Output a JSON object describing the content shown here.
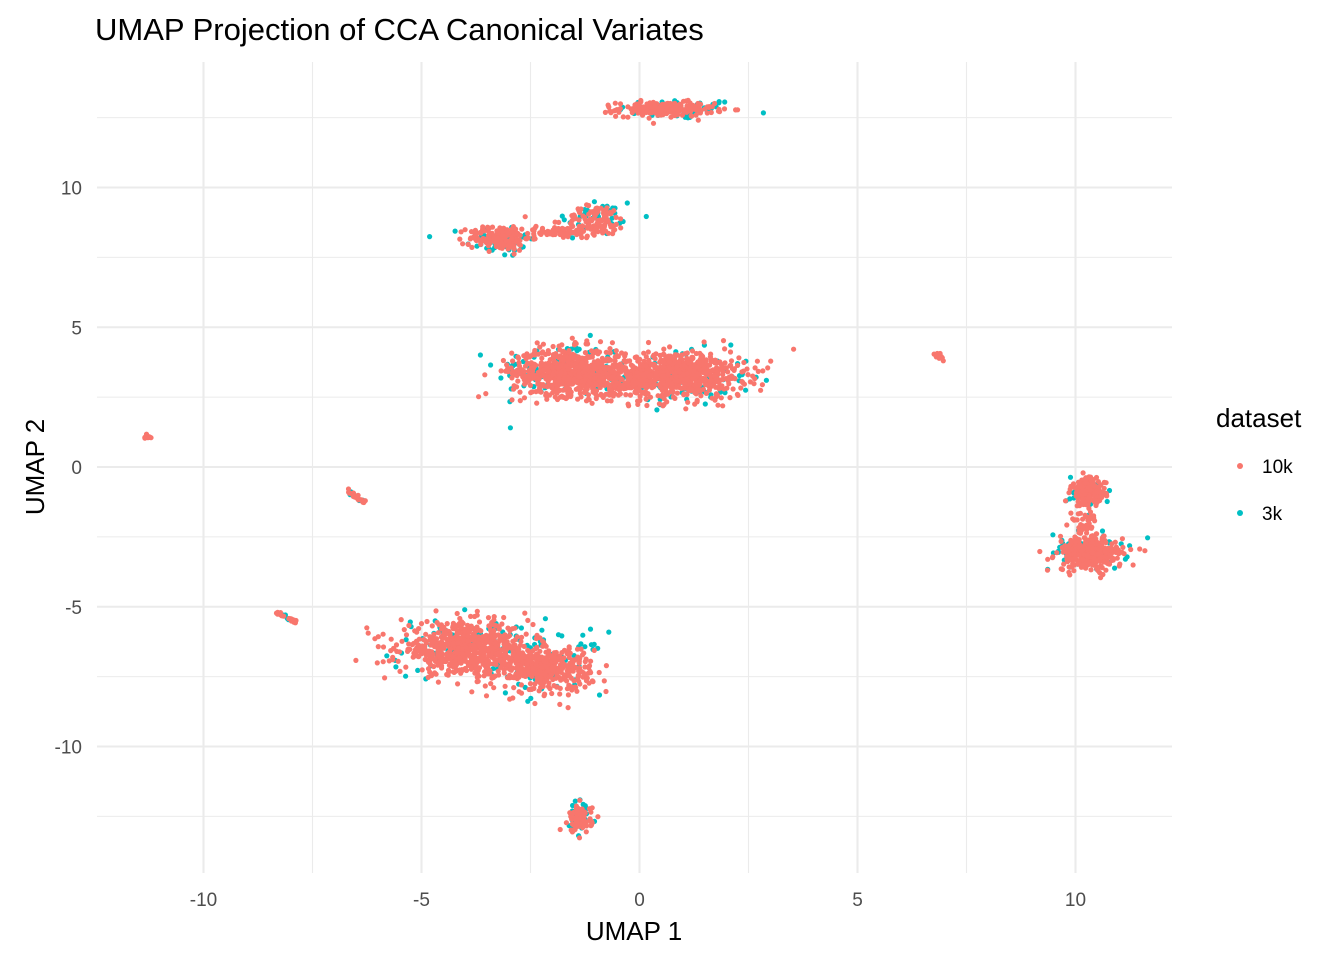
{
  "chart_data": {
    "type": "scatter",
    "title": "UMAP Projection of CCA Canonical Variates",
    "xlabel": "UMAP 1",
    "ylabel": "UMAP 2",
    "xlim": [
      -12.2,
      12.2
    ],
    "ylim": [
      -14.5,
      14.5
    ],
    "x_ticks": [
      -10,
      -5,
      0,
      5,
      10
    ],
    "y_ticks": [
      -10,
      -5,
      0,
      5,
      10
    ],
    "x_tick_labels": [
      "-10",
      "-5",
      "0",
      "5",
      "10"
    ],
    "y_tick_labels": [
      "-10",
      "-5",
      "0",
      "5",
      "10"
    ],
    "grid": true,
    "legend": {
      "title": "dataset",
      "position": "right",
      "entries": [
        {
          "label": "10k",
          "color": "#F8766D"
        },
        {
          "label": "3k",
          "color": "#00BFC4"
        }
      ]
    },
    "series": [
      {
        "name": "3k",
        "color": "#00BFC4",
        "clusters": [
          {
            "cx": 0.9,
            "cy": 12.8,
            "sx": 0.7,
            "sy": 0.18,
            "n": 60
          },
          {
            "cx": -3.2,
            "cy": 8.1,
            "sx": 0.4,
            "sy": 0.3,
            "n": 40
          },
          {
            "cx": -1.0,
            "cy": 8.9,
            "sx": 0.5,
            "sy": 0.4,
            "n": 40
          },
          {
            "cx": -1.8,
            "cy": 3.5,
            "sx": 0.75,
            "sy": 0.5,
            "n": 90
          },
          {
            "cx": 1.0,
            "cy": 3.2,
            "sx": 0.8,
            "sy": 0.5,
            "n": 90
          },
          {
            "cx": -3.9,
            "cy": -6.5,
            "sx": 0.9,
            "sy": 0.55,
            "n": 90
          },
          {
            "cx": -2.0,
            "cy": -7.0,
            "sx": 0.6,
            "sy": 0.55,
            "n": 60
          },
          {
            "cx": -1.35,
            "cy": -12.6,
            "sx": 0.18,
            "sy": 0.35,
            "n": 30
          },
          {
            "cx": 10.3,
            "cy": -0.9,
            "sx": 0.25,
            "sy": 0.3,
            "n": 30
          },
          {
            "cx": 10.3,
            "cy": -3.0,
            "sx": 0.45,
            "sy": 0.35,
            "n": 50
          }
        ],
        "streaks": [
          {
            "x1": -8.3,
            "y1": -5.2,
            "x2": -7.9,
            "y2": -5.55,
            "n": 6
          },
          {
            "x1": -6.7,
            "y1": -0.8,
            "x2": -6.35,
            "y2": -1.25,
            "n": 6
          }
        ]
      },
      {
        "name": "10k",
        "color": "#F8766D",
        "clusters": [
          {
            "cx": 0.6,
            "cy": 12.8,
            "sx": 0.55,
            "sy": 0.13,
            "n": 220
          },
          {
            "cx": -3.2,
            "cy": 8.2,
            "sx": 0.35,
            "sy": 0.22,
            "n": 160
          },
          {
            "cx": -1.9,
            "cy": 8.4,
            "sx": 0.4,
            "sy": 0.1,
            "n": 60
          },
          {
            "cx": -1.0,
            "cy": 8.8,
            "sx": 0.35,
            "sy": 0.28,
            "n": 120
          },
          {
            "cx": -1.6,
            "cy": 3.4,
            "sx": 0.65,
            "sy": 0.42,
            "n": 650
          },
          {
            "cx": 1.0,
            "cy": 3.3,
            "sx": 0.7,
            "sy": 0.42,
            "n": 650
          },
          {
            "cx": -0.3,
            "cy": 3.1,
            "sx": 0.5,
            "sy": 0.35,
            "n": 150
          },
          {
            "cx": -4.0,
            "cy": -6.5,
            "sx": 0.75,
            "sy": 0.45,
            "n": 650
          },
          {
            "cx": -2.2,
            "cy": -7.2,
            "sx": 0.55,
            "sy": 0.4,
            "n": 400
          },
          {
            "cx": -1.35,
            "cy": -12.6,
            "sx": 0.13,
            "sy": 0.25,
            "n": 80
          },
          {
            "cx": 10.3,
            "cy": -0.9,
            "sx": 0.2,
            "sy": 0.25,
            "n": 150
          },
          {
            "cx": 10.35,
            "cy": -3.1,
            "sx": 0.38,
            "sy": 0.3,
            "n": 300
          },
          {
            "cx": 10.2,
            "cy": -2.0,
            "sx": 0.15,
            "sy": 0.25,
            "n": 40
          },
          {
            "cx": 6.85,
            "cy": 3.95,
            "sx": 0.05,
            "sy": 0.06,
            "n": 15
          },
          {
            "cx": -11.3,
            "cy": 1.08,
            "sx": 0.05,
            "sy": 0.03,
            "n": 12
          }
        ],
        "streaks": [
          {
            "x1": -8.3,
            "y1": -5.2,
            "x2": -7.9,
            "y2": -5.55,
            "n": 22
          },
          {
            "x1": -6.7,
            "y1": -0.8,
            "x2": -6.35,
            "y2": -1.25,
            "n": 22
          }
        ]
      }
    ]
  }
}
